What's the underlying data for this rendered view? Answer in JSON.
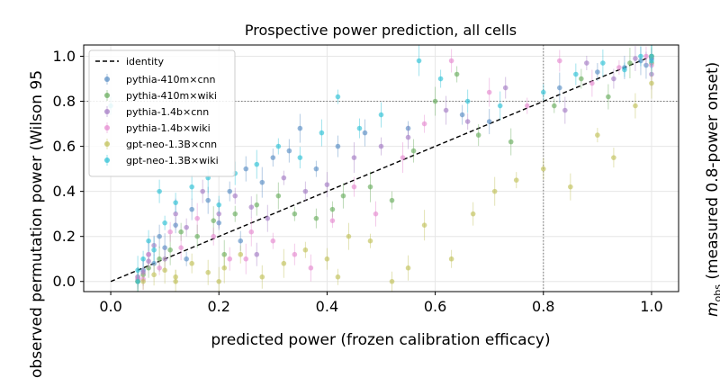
{
  "chart_data": {
    "type": "scatter",
    "title": "Prospective power prediction, all cells",
    "xlabel": "predicted power (frozen calibration efficacy)",
    "ylabel": "observed permutation power (Wilson 95",
    "right_label_main": "m",
    "right_label_sub": "obs",
    "right_label_rest": " (measured 0.8-power onset)",
    "xlim": [
      -0.05,
      1.05
    ],
    "ylim": [
      -0.045,
      1.05
    ],
    "x_ticks": [
      0.0,
      0.2,
      0.4,
      0.6,
      0.8,
      1.0
    ],
    "y_ticks": [
      0.0,
      0.2,
      0.4,
      0.6,
      0.8,
      1.0
    ],
    "x_tick_labels": [
      "0.0",
      "0.2",
      "0.4",
      "0.6",
      "0.8",
      "1.0"
    ],
    "y_tick_labels": [
      "0.0",
      "0.2",
      "0.4",
      "0.6",
      "0.8",
      "1.0"
    ],
    "grid": true,
    "reference_lines": {
      "identity": [
        [
          0,
          0
        ],
        [
          1,
          1
        ]
      ],
      "vertical_x": 0.8,
      "horizontal_y": 0.8
    },
    "legend": {
      "placement": "top-left",
      "identity_label": "identity"
    },
    "series": [
      {
        "name": "pythia-410m×cnn",
        "color": "#5b8fc4",
        "points": [
          [
            0.05,
            0.0
          ],
          [
            0.05,
            0.02
          ],
          [
            0.06,
            0.05
          ],
          [
            0.07,
            0.12
          ],
          [
            0.08,
            0.08
          ],
          [
            0.09,
            0.2
          ],
          [
            0.1,
            0.15
          ],
          [
            0.12,
            0.25
          ],
          [
            0.15,
            0.32
          ],
          [
            0.18,
            0.36
          ],
          [
            0.2,
            0.26
          ],
          [
            0.22,
            0.4
          ],
          [
            0.25,
            0.5
          ],
          [
            0.28,
            0.44
          ],
          [
            0.3,
            0.55
          ],
          [
            0.33,
            0.58
          ],
          [
            0.35,
            0.68
          ],
          [
            0.38,
            0.5
          ],
          [
            0.42,
            0.6
          ],
          [
            0.47,
            0.66
          ],
          [
            0.55,
            0.68
          ],
          [
            0.65,
            0.74
          ],
          [
            0.7,
            0.71
          ],
          [
            0.83,
            0.86
          ],
          [
            0.9,
            0.93
          ],
          [
            0.95,
            0.95
          ],
          [
            0.98,
            0.98
          ],
          [
            1.0,
            1.0
          ],
          [
            1.0,
            0.99
          ],
          [
            0.99,
            0.96
          ],
          [
            0.14,
            0.1
          ],
          [
            0.24,
            0.18
          ]
        ]
      },
      {
        "name": "pythia-410m×wiki",
        "color": "#6aad5f",
        "points": [
          [
            0.05,
            0.0
          ],
          [
            0.06,
            0.03
          ],
          [
            0.07,
            0.06
          ],
          [
            0.09,
            0.1
          ],
          [
            0.11,
            0.14
          ],
          [
            0.13,
            0.22
          ],
          [
            0.16,
            0.2
          ],
          [
            0.19,
            0.27
          ],
          [
            0.23,
            0.3
          ],
          [
            0.27,
            0.34
          ],
          [
            0.31,
            0.38
          ],
          [
            0.34,
            0.3
          ],
          [
            0.38,
            0.28
          ],
          [
            0.43,
            0.38
          ],
          [
            0.48,
            0.42
          ],
          [
            0.52,
            0.36
          ],
          [
            0.56,
            0.58
          ],
          [
            0.6,
            0.8
          ],
          [
            0.64,
            0.92
          ],
          [
            0.68,
            0.65
          ],
          [
            0.74,
            0.62
          ],
          [
            0.82,
            0.78
          ],
          [
            0.87,
            0.9
          ],
          [
            0.92,
            0.82
          ],
          [
            0.96,
            0.97
          ],
          [
            1.0,
            0.97
          ],
          [
            1.0,
            1.0
          ],
          [
            0.21,
            0.12
          ],
          [
            0.41,
            0.32
          ]
        ]
      },
      {
        "name": "pythia-1.4b×cnn",
        "color": "#a47cc4",
        "points": [
          [
            0.05,
            0.01
          ],
          [
            0.06,
            0.04
          ],
          [
            0.07,
            0.09
          ],
          [
            0.08,
            0.16
          ],
          [
            0.1,
            0.1
          ],
          [
            0.12,
            0.3
          ],
          [
            0.14,
            0.24
          ],
          [
            0.17,
            0.4
          ],
          [
            0.2,
            0.3
          ],
          [
            0.23,
            0.38
          ],
          [
            0.26,
            0.33
          ],
          [
            0.29,
            0.28
          ],
          [
            0.32,
            0.46
          ],
          [
            0.36,
            0.4
          ],
          [
            0.4,
            0.43
          ],
          [
            0.45,
            0.55
          ],
          [
            0.5,
            0.6
          ],
          [
            0.55,
            0.64
          ],
          [
            0.62,
            0.76
          ],
          [
            0.66,
            0.71
          ],
          [
            0.73,
            0.86
          ],
          [
            0.84,
            0.76
          ],
          [
            0.88,
            0.97
          ],
          [
            0.93,
            0.9
          ],
          [
            0.97,
            0.99
          ],
          [
            1.0,
            0.92
          ],
          [
            1.0,
            0.99
          ],
          [
            0.27,
            0.12
          ]
        ]
      },
      {
        "name": "pythia-1.4b×wiki",
        "color": "#e58ad0",
        "points": [
          [
            0.05,
            0.02
          ],
          [
            0.06,
            0.01
          ],
          [
            0.07,
            0.12
          ],
          [
            0.09,
            0.06
          ],
          [
            0.11,
            0.22
          ],
          [
            0.13,
            0.15
          ],
          [
            0.16,
            0.28
          ],
          [
            0.19,
            0.2
          ],
          [
            0.22,
            0.1
          ],
          [
            0.26,
            0.22
          ],
          [
            0.3,
            0.18
          ],
          [
            0.34,
            0.12
          ],
          [
            0.37,
            0.06
          ],
          [
            0.41,
            0.27
          ],
          [
            0.45,
            0.42
          ],
          [
            0.49,
            0.3
          ],
          [
            0.54,
            0.55
          ],
          [
            0.58,
            0.7
          ],
          [
            0.63,
            0.98
          ],
          [
            0.7,
            0.84
          ],
          [
            0.77,
            0.78
          ],
          [
            0.83,
            0.98
          ],
          [
            0.89,
            0.88
          ],
          [
            0.94,
            0.95
          ],
          [
            0.99,
            1.0
          ],
          [
            1.0,
            0.96
          ],
          [
            0.25,
            0.1
          ]
        ]
      },
      {
        "name": "gpt-neo-1.3B×cnn",
        "color": "#c2c25a",
        "points": [
          [
            0.05,
            0.0
          ],
          [
            0.06,
            0.0
          ],
          [
            0.08,
            0.03
          ],
          [
            0.1,
            0.05
          ],
          [
            0.12,
            0.02
          ],
          [
            0.15,
            0.08
          ],
          [
            0.18,
            0.04
          ],
          [
            0.21,
            0.06
          ],
          [
            0.24,
            0.12
          ],
          [
            0.28,
            0.02
          ],
          [
            0.32,
            0.08
          ],
          [
            0.36,
            0.14
          ],
          [
            0.4,
            0.1
          ],
          [
            0.44,
            0.2
          ],
          [
            0.48,
            0.18
          ],
          [
            0.52,
            0.0
          ],
          [
            0.55,
            0.06
          ],
          [
            0.58,
            0.25
          ],
          [
            0.63,
            0.1
          ],
          [
            0.67,
            0.3
          ],
          [
            0.71,
            0.4
          ],
          [
            0.75,
            0.45
          ],
          [
            0.8,
            0.5
          ],
          [
            0.85,
            0.42
          ],
          [
            0.9,
            0.65
          ],
          [
            0.93,
            0.55
          ],
          [
            0.97,
            0.78
          ],
          [
            1.0,
            0.88
          ],
          [
            1.0,
            1.0
          ],
          [
            0.12,
            0.0
          ],
          [
            0.2,
            0.0
          ],
          [
            0.42,
            0.02
          ]
        ]
      },
      {
        "name": "gpt-neo-1.3B×wiki",
        "color": "#2fc2d6",
        "points": [
          [
            0.05,
            0.0
          ],
          [
            0.05,
            0.05
          ],
          [
            0.06,
            0.1
          ],
          [
            0.07,
            0.18
          ],
          [
            0.08,
            0.14
          ],
          [
            0.1,
            0.26
          ],
          [
            0.12,
            0.35
          ],
          [
            0.15,
            0.42
          ],
          [
            0.18,
            0.46
          ],
          [
            0.2,
            0.34
          ],
          [
            0.23,
            0.48
          ],
          [
            0.27,
            0.52
          ],
          [
            0.31,
            0.6
          ],
          [
            0.35,
            0.55
          ],
          [
            0.39,
            0.66
          ],
          [
            0.42,
            0.82
          ],
          [
            0.46,
            0.68
          ],
          [
            0.5,
            0.74
          ],
          [
            0.57,
            0.98
          ],
          [
            0.61,
            0.9
          ],
          [
            0.66,
            0.8
          ],
          [
            0.72,
            0.78
          ],
          [
            0.8,
            0.84
          ],
          [
            0.86,
            0.92
          ],
          [
            0.91,
            0.97
          ],
          [
            0.95,
            0.94
          ],
          [
            0.98,
            1.0
          ],
          [
            1.0,
            1.0
          ],
          [
            1.0,
            0.98
          ],
          [
            0.0,
            0.78
          ],
          [
            0.09,
            0.4
          ]
        ]
      }
    ]
  }
}
